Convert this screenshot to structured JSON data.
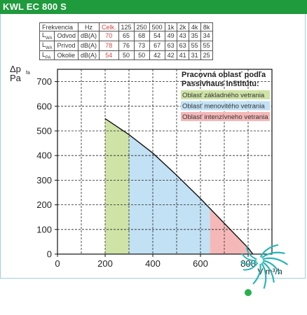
{
  "header": {
    "title": "KWL EC 800 S"
  },
  "spec_table": {
    "header": [
      "Frekvencia",
      "Hz",
      "Celk.",
      "125",
      "250",
      "500",
      "1k",
      "2k",
      "4k",
      "8k"
    ],
    "rows": [
      {
        "sym": "L",
        "sub": "WA",
        "name": "Odvod",
        "unit": "dB(A)",
        "total": "70",
        "values": [
          "65",
          "68",
          "54",
          "49",
          "43",
          "35",
          "34"
        ]
      },
      {
        "sym": "L",
        "sub": "WA",
        "name": "Prívod",
        "unit": "dB(A)",
        "total": "78",
        "values": [
          "76",
          "73",
          "67",
          "63",
          "63",
          "55",
          "55"
        ]
      },
      {
        "sym": "L",
        "sub": "PA",
        "name": "Okolie",
        "unit": "dB(A)",
        "total": "54",
        "values": [
          "50",
          "50",
          "42",
          "42",
          "41",
          "31",
          "25"
        ]
      }
    ]
  },
  "chart_data": {
    "type": "area",
    "ylabel_main": "Δp",
    "ylabel_sub": "fa",
    "ylabel_unit": "Pa",
    "xlabel": "V m³/h",
    "xlim": [
      0,
      900
    ],
    "ylim": [
      0,
      750
    ],
    "xticks": [
      0,
      200,
      400,
      600,
      800
    ],
    "yticks": [
      0,
      100,
      200,
      300,
      400,
      500,
      600,
      700
    ],
    "grid": true,
    "curve": [
      {
        "x": 200,
        "y": 550
      },
      {
        "x": 300,
        "y": 485
      },
      {
        "x": 400,
        "y": 410
      },
      {
        "x": 500,
        "y": 320
      },
      {
        "x": 600,
        "y": 225
      },
      {
        "x": 700,
        "y": 125
      },
      {
        "x": 800,
        "y": 25
      },
      {
        "x": 820,
        "y": 0
      }
    ],
    "zones": [
      {
        "name": "Oblasť základného vetrania",
        "x_range": [
          200,
          300
        ],
        "color": "#cfe3a6"
      },
      {
        "name": "Oblasť menovitého vetrania",
        "x_range": [
          300,
          640
        ],
        "color": "#c2e1f4"
      },
      {
        "name": "Oblasť intenzívneho vetrania",
        "x_range": [
          640,
          820
        ],
        "color": "#f5b8b8"
      }
    ],
    "legend": {
      "title_line1": "Pracovná oblasť podľa",
      "title_line2": "Passivhaus inštitútu:",
      "placement": "top-right"
    }
  }
}
